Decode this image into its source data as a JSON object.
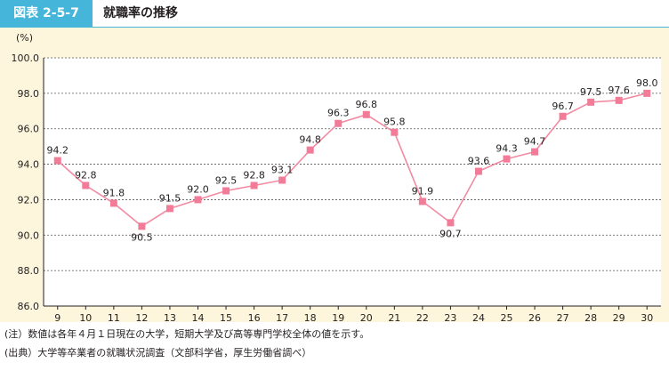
{
  "figure": {
    "label": "図表 2-5-7",
    "title": "就職率の推移"
  },
  "chart_data": {
    "type": "line",
    "title": "就職率の推移",
    "ylabel": "(%)",
    "xlabel": "",
    "x": [
      "9",
      "10",
      "11",
      "12",
      "13",
      "14",
      "15",
      "16",
      "17",
      "18",
      "19",
      "20",
      "21",
      "22",
      "23",
      "24",
      "25",
      "26",
      "27",
      "28",
      "29",
      "30"
    ],
    "series": [
      {
        "name": "",
        "values": [
          94.2,
          92.8,
          91.8,
          90.5,
          91.5,
          92.0,
          92.5,
          92.8,
          93.1,
          94.8,
          96.3,
          96.8,
          95.8,
          91.9,
          90.7,
          93.6,
          94.3,
          94.7,
          96.7,
          97.5,
          97.6,
          98.0
        ]
      }
    ],
    "ylim": [
      86.0,
      100.0
    ],
    "yticks": [
      "86.0",
      "88.0",
      "90.0",
      "92.0",
      "94.0",
      "96.0",
      "98.0",
      "100.0"
    ],
    "grid": "horizontal",
    "colors": {
      "line": "#f28ba2",
      "marker": "#f27c97",
      "plot_bg": "#ffffff",
      "panel_bg": "#fdf6dc"
    }
  },
  "notes": {
    "note": "(注）数値は各年４月１日現在の大学，短期大学及び高等専門学校全体の値を示す。",
    "source": "(出典）大学等卒業者の就職状況調査（文部科学省，厚生労働省調べ）"
  }
}
